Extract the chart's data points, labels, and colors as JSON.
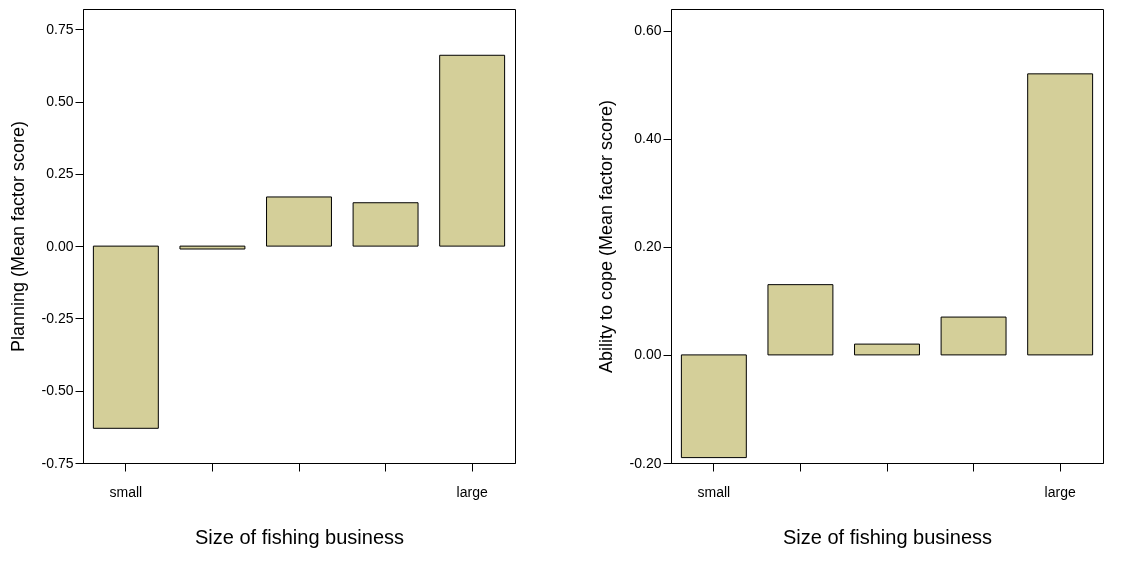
{
  "chart_data": [
    {
      "type": "bar",
      "categories": [
        "small",
        null,
        null,
        null,
        "large"
      ],
      "values": [
        -0.63,
        -0.01,
        0.17,
        0.15,
        0.66
      ],
      "color": "#d4cf99",
      "xlabel": "Size of fishing business",
      "ylabel": "Planning (Mean factor score)",
      "ylim": [
        -0.75,
        0.82
      ],
      "yticks": [
        {
          "value": -0.75,
          "label": "-0.75"
        },
        {
          "value": -0.5,
          "label": "-0.50"
        },
        {
          "value": -0.25,
          "label": "-0.25"
        },
        {
          "value": 0,
          "label": "0.00"
        },
        {
          "value": 0.25,
          "label": "0.25"
        },
        {
          "value": 0.5,
          "label": "0.50"
        },
        {
          "value": 0.75,
          "label": "0.75"
        }
      ]
    },
    {
      "type": "bar",
      "categories": [
        "small",
        null,
        null,
        null,
        "large"
      ],
      "values": [
        -0.19,
        0.13,
        0.02,
        0.07,
        0.52
      ],
      "color": "#d4cf99",
      "xlabel": "Size of fishing business",
      "ylabel": "Ability to cope (Mean factor score)",
      "ylim": [
        -0.2,
        0.64
      ],
      "yticks": [
        {
          "value": -0.2,
          "label": "-0.20"
        },
        {
          "value": 0,
          "label": "0.00"
        },
        {
          "value": 0.2,
          "label": "0.20"
        },
        {
          "value": 0.4,
          "label": "0.40"
        },
        {
          "value": 0.6,
          "label": "0.60"
        }
      ]
    }
  ]
}
